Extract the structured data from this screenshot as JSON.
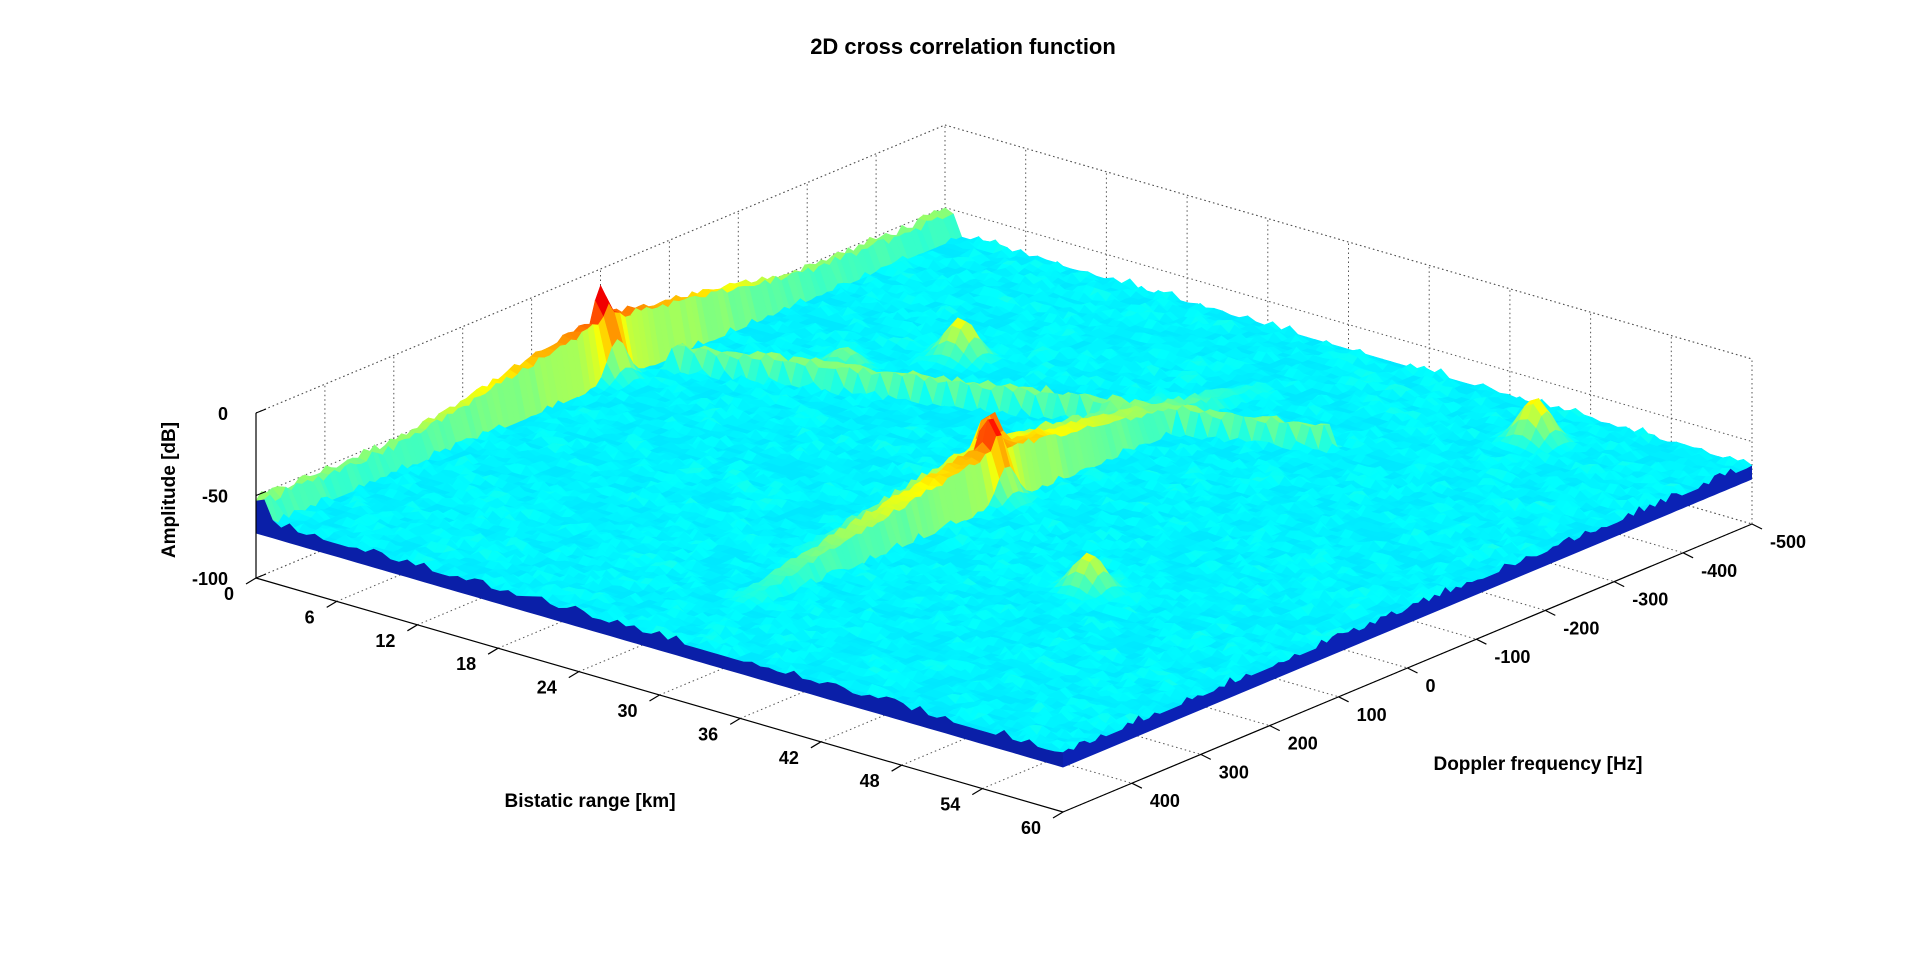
{
  "chart_data": {
    "type": "surface",
    "title": "2D cross correlation function",
    "xlabel": "Bistatic range [km]",
    "ylabel": "Doppler frequency [Hz]",
    "zlabel": "Amplitude [dB]",
    "xlim": [
      0,
      60
    ],
    "ylim": [
      -500,
      500
    ],
    "zlim": [
      -100,
      0
    ],
    "x_ticks": [
      0,
      6,
      12,
      18,
      24,
      30,
      36,
      42,
      48,
      54,
      60
    ],
    "y_ticks": [
      -500,
      -400,
      -300,
      -200,
      -100,
      0,
      100,
      200,
      300,
      400
    ],
    "z_ticks": [
      -100,
      -50,
      0
    ],
    "x_tick_labels": [
      "0",
      "6",
      "12",
      "18",
      "24",
      "30",
      "36",
      "42",
      "48",
      "54",
      "60"
    ],
    "y_tick_labels": [
      "-500",
      "-400",
      "-300",
      "-200",
      "-100",
      "0",
      "100",
      "200",
      "300",
      "400"
    ],
    "z_tick_labels": [
      "-100",
      "-50",
      "0"
    ],
    "colormap": "jet",
    "noise_floor_db": -65,
    "peaks": [
      {
        "range_km": 0,
        "doppler_hz": 0,
        "amplitude_db": -10
      },
      {
        "range_km": 30,
        "doppler_hz": 20,
        "amplitude_db": -15
      },
      {
        "range_km": 28,
        "doppler_hz": -20,
        "amplitude_db": -23
      },
      {
        "range_km": 44,
        "doppler_hz": 150,
        "amplitude_db": -42
      },
      {
        "range_km": 14,
        "doppler_hz": -250,
        "amplitude_db": -40
      },
      {
        "range_km": 10,
        "doppler_hz": -160,
        "amplitude_db": -52
      },
      {
        "range_km": 48,
        "doppler_hz": -420,
        "amplitude_db": -38
      }
    ]
  }
}
